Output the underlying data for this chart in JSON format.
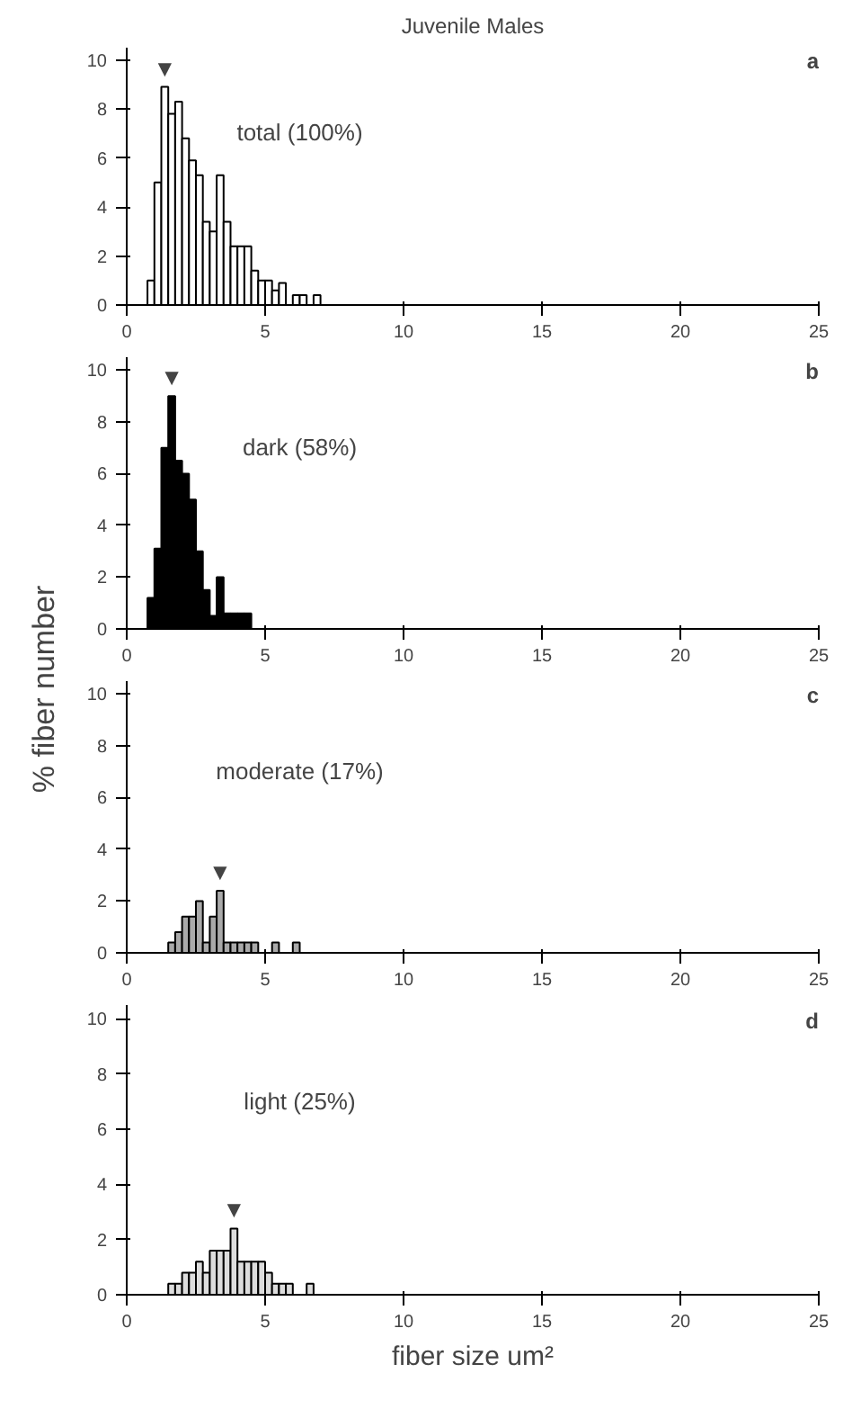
{
  "chart_data": [
    {
      "type": "histogram",
      "title": "Juvenile Males",
      "color": "#ffffff",
      "bins": [
        0.75,
        1.0,
        1.25,
        1.5,
        1.75,
        2.0,
        2.25,
        2.5,
        2.75,
        3.0,
        3.25,
        3.5,
        3.75,
        4.0,
        4.25,
        4.5,
        4.75,
        5.0,
        5.25,
        5.5,
        5.75,
        6.0,
        6.25,
        6.5,
        6.75,
        7.0
      ],
      "values": [
        1.0,
        5.0,
        8.9,
        7.8,
        8.3,
        6.8,
        5.9,
        5.3,
        3.4,
        3.0,
        5.3,
        3.4,
        2.4,
        2.4,
        2.4,
        1.4,
        1.0,
        1.0,
        0.6,
        0.9,
        null,
        0.4,
        0.4,
        null,
        0.4
      ],
      "annotations": [
        "a",
        "total (100%)",
        "▼"
      ],
      "xlim": [
        0,
        25
      ],
      "xticks": [
        0,
        5,
        10,
        15,
        20,
        25
      ],
      "ylim": [
        0,
        10.5
      ],
      "yticks": [
        0,
        2,
        4,
        6,
        8,
        10
      ],
      "grid": false
    },
    {
      "type": "histogram",
      "color": "#000000",
      "ylabel": "% fiber number",
      "bins": [
        0.75,
        1.0,
        1.25,
        1.5,
        1.75,
        2.0,
        2.25,
        2.5,
        2.75,
        3.0,
        3.25,
        3.5,
        3.75,
        4.0,
        4.25,
        4.5
      ],
      "values": [
        1.2,
        3.1,
        7.0,
        9.0,
        6.5,
        6.0,
        5.0,
        3.0,
        1.5,
        0.5,
        2.0,
        0.6,
        0.6,
        0.6,
        0.6
      ],
      "annotations": [
        "b",
        "dark (58%)",
        "▼"
      ],
      "xlim": [
        0,
        25
      ],
      "xticks": [
        0,
        5,
        10,
        15,
        20,
        25
      ],
      "ylim": [
        0,
        10.5
      ],
      "yticks": [
        0,
        2,
        4,
        6,
        8,
        10
      ],
      "grid": false
    },
    {
      "type": "histogram",
      "color": "#aaaaaa",
      "bins": [
        1.5,
        1.75,
        2.0,
        2.25,
        2.5,
        2.75,
        3.0,
        3.25,
        3.5,
        3.75,
        4.0,
        4.25,
        4.5,
        4.75,
        5.0,
        5.25,
        5.5,
        5.75,
        6.0,
        6.25
      ],
      "values": [
        0.4,
        0.8,
        1.4,
        1.4,
        2.0,
        0.4,
        1.4,
        2.4,
        0.4,
        0.4,
        0.4,
        0.4,
        0.4,
        null,
        null,
        0.4,
        null,
        null,
        0.4
      ],
      "annotations": [
        "c",
        "moderate (17%)",
        "▼"
      ],
      "xlim": [
        0,
        25
      ],
      "xticks": [
        0,
        5,
        10,
        15,
        20,
        25
      ],
      "ylim": [
        0,
        10.5
      ],
      "yticks": [
        0,
        2,
        4,
        6,
        8,
        10
      ],
      "grid": false
    },
    {
      "type": "histogram",
      "color": "#dddddd",
      "xlabel": "fiber size um²",
      "bins": [
        1.5,
        1.75,
        2.0,
        2.25,
        2.5,
        2.75,
        3.0,
        3.25,
        3.5,
        3.75,
        4.0,
        4.25,
        4.5,
        4.75,
        5.0,
        5.25,
        5.5,
        5.75,
        6.0,
        6.25,
        6.5,
        6.75
      ],
      "values": [
        0.4,
        0.4,
        0.8,
        0.8,
        1.2,
        0.8,
        1.6,
        1.6,
        1.6,
        2.4,
        1.2,
        1.2,
        1.2,
        1.2,
        0.8,
        0.4,
        0.4,
        0.4,
        null,
        null,
        0.4
      ],
      "annotations": [
        "d",
        "light (25%)",
        "▼"
      ],
      "xlim": [
        0,
        25
      ],
      "xticks": [
        0,
        5,
        10,
        15,
        20,
        25
      ],
      "ylim": [
        0,
        10.5
      ],
      "yticks": [
        0,
        2,
        4,
        6,
        8,
        10
      ],
      "grid": false
    }
  ]
}
